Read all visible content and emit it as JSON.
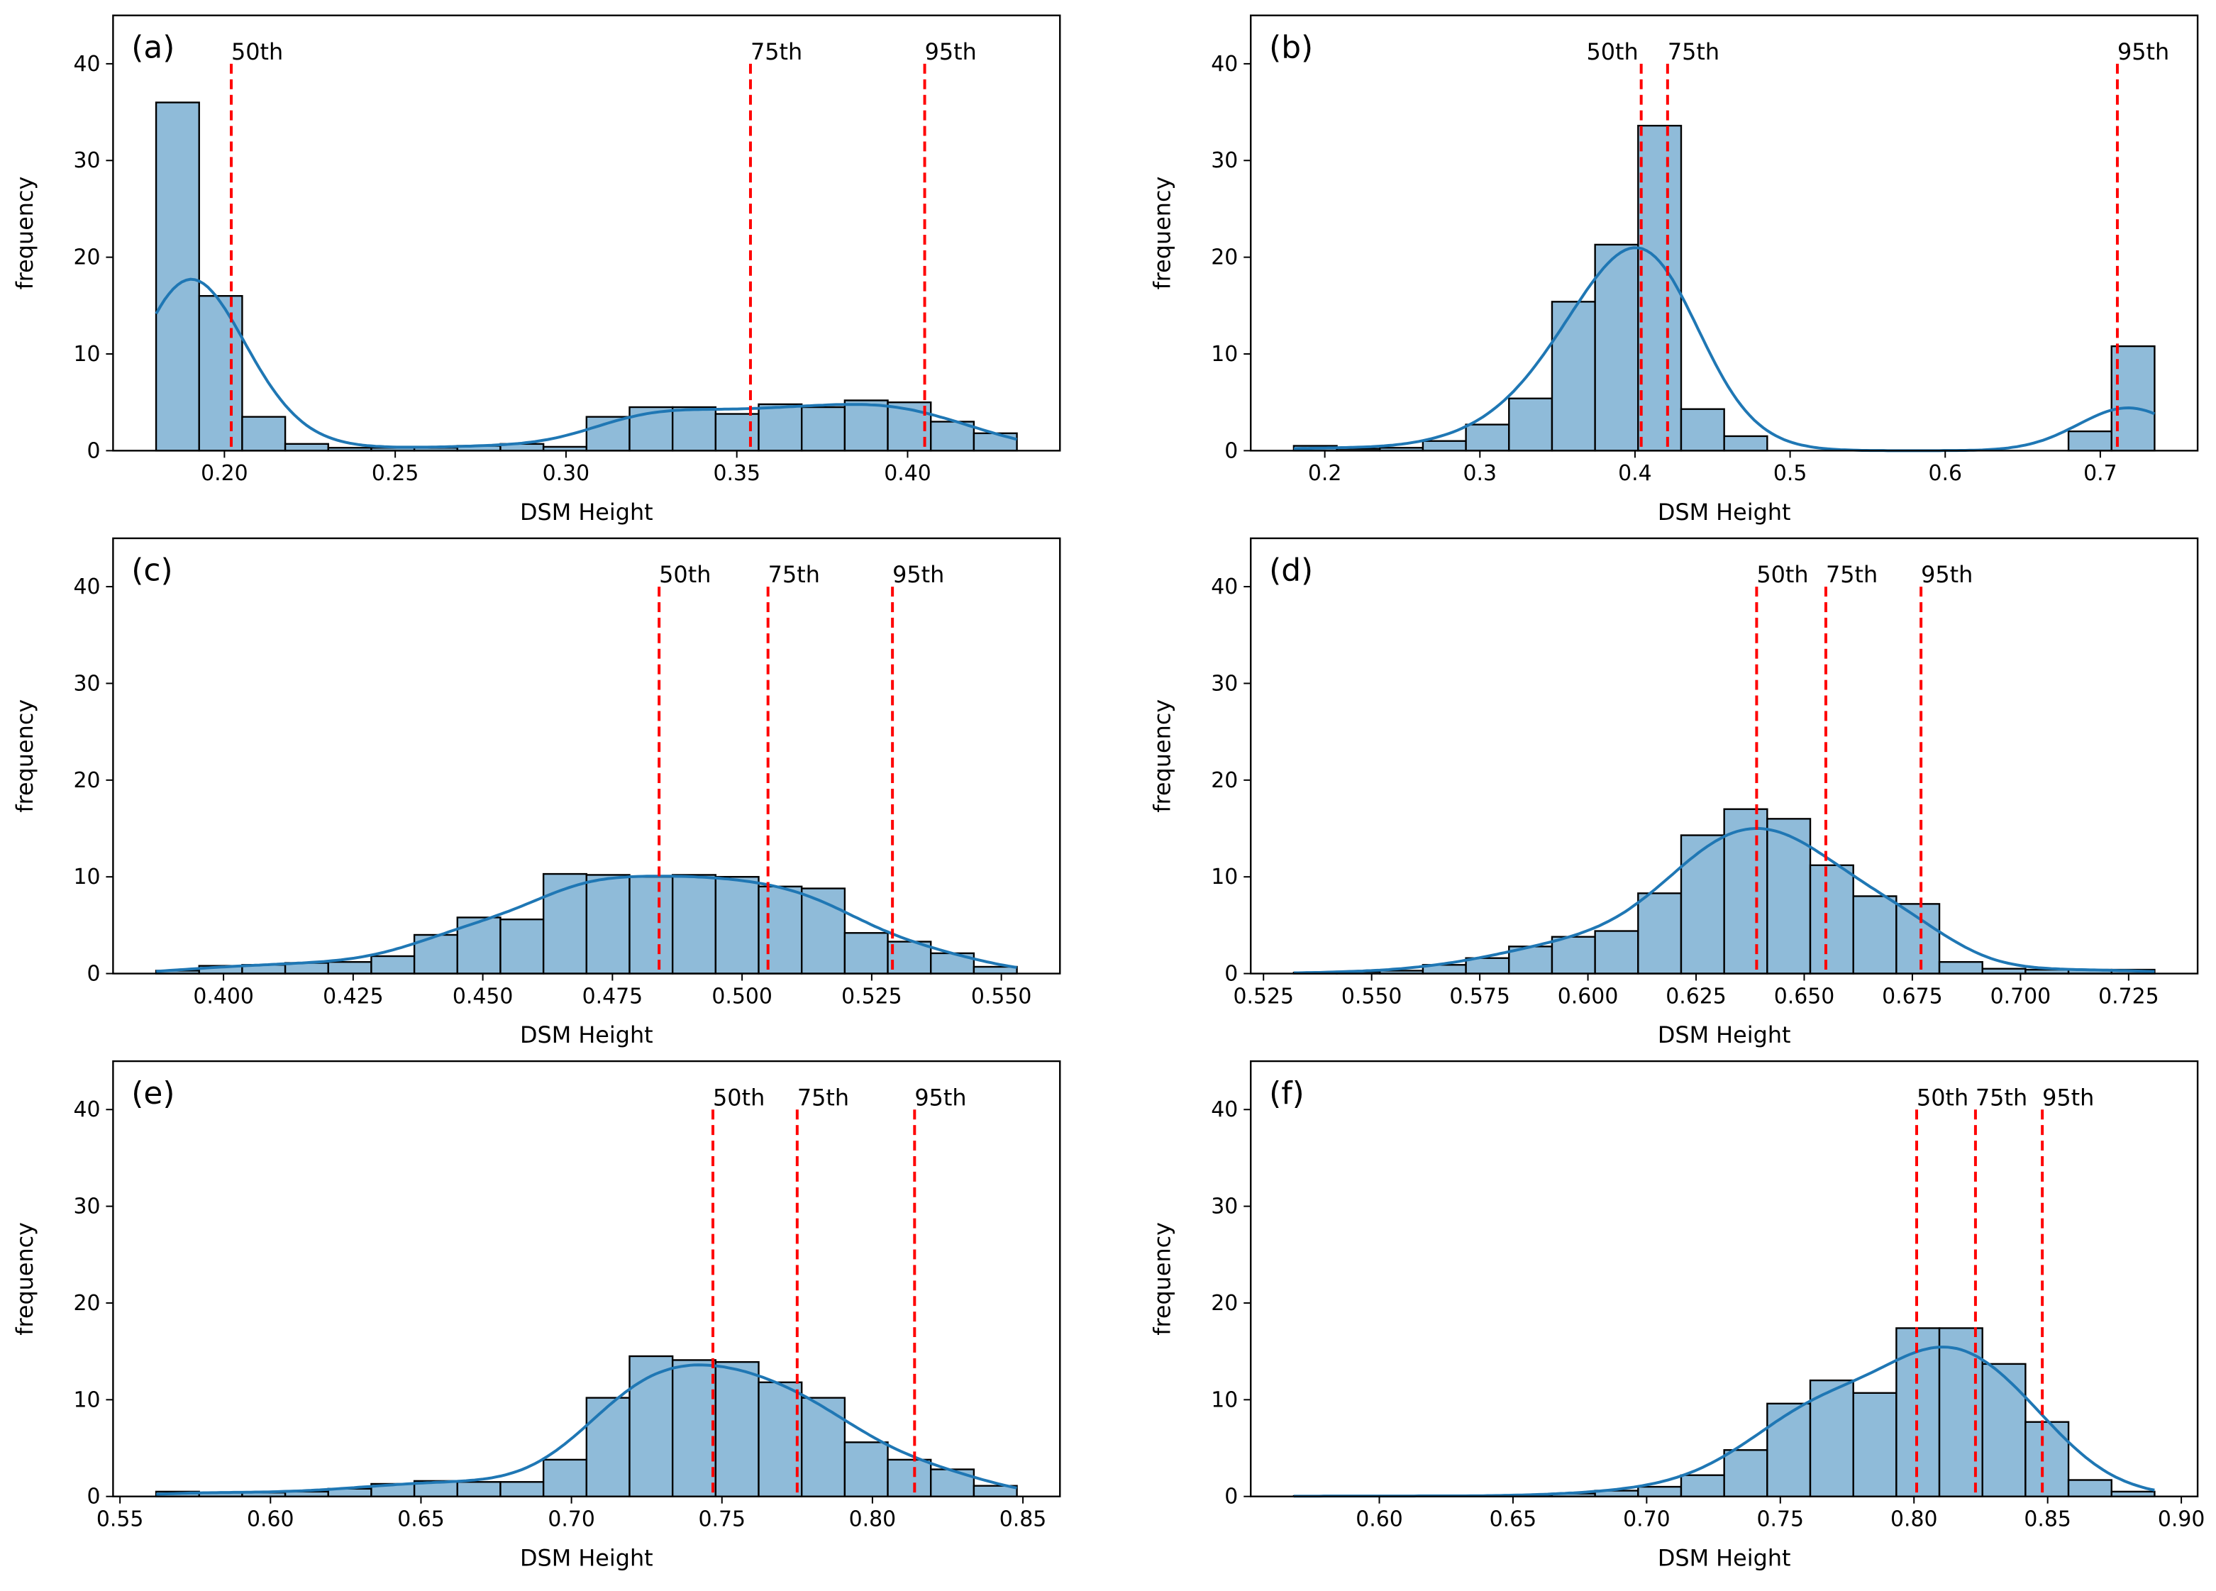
{
  "chart_data": [
    {
      "type": "bar",
      "title": "(a)",
      "xlabel": "DSM Height",
      "ylabel": "frequency",
      "bin_start": 0.18,
      "bin_end": 0.432,
      "values": [
        36,
        16,
        3.5,
        0.7,
        0.3,
        0.3,
        0.3,
        0.5,
        0.7,
        0.4,
        3.5,
        4.5,
        4.5,
        3.8,
        4.8,
        4.5,
        5.2,
        5.0,
        3.0,
        1.8
      ],
      "xticks": [
        "0.20",
        "0.25",
        "0.30",
        "0.35",
        "0.40"
      ],
      "yticks": [
        "0",
        "10",
        "20",
        "30",
        "40"
      ],
      "ylim": [
        0,
        45
      ],
      "percentiles": [
        {
          "label": "50th",
          "value": 0.202
        },
        {
          "label": "75th",
          "value": 0.354
        },
        {
          "label": "95th",
          "value": 0.405
        }
      ]
    },
    {
      "type": "bar",
      "title": "(b)",
      "xlabel": "DSM Height",
      "ylabel": "frequency",
      "bin_start": 0.18,
      "bin_end": 0.735,
      "values": [
        0.5,
        0.2,
        0.3,
        1.0,
        2.7,
        5.4,
        15.4,
        21.3,
        33.6,
        4.3,
        1.5,
        0,
        0,
        0,
        0,
        0,
        0,
        0,
        2.0,
        10.8
      ],
      "xticks": [
        "0.2",
        "0.3",
        "0.4",
        "0.5",
        "0.6",
        "0.7"
      ],
      "yticks": [
        "0",
        "10",
        "20",
        "30",
        "40"
      ],
      "ylim": [
        0,
        45
      ],
      "percentiles": [
        {
          "label": "50th",
          "value": 0.404
        },
        {
          "label": "75th",
          "value": 0.421
        },
        {
          "label": "95th",
          "value": 0.711
        }
      ]
    },
    {
      "type": "bar",
      "title": "(c)",
      "xlabel": "DSM Height",
      "ylabel": "frequency",
      "bin_start": 0.387,
      "bin_end": 0.553,
      "values": [
        0.3,
        0.8,
        0.9,
        1.1,
        1.2,
        1.8,
        4.0,
        5.8,
        5.6,
        10.3,
        10.2,
        10.0,
        10.2,
        10.0,
        9.0,
        8.8,
        4.2,
        3.3,
        2.1,
        0.7
      ],
      "xticks": [
        "0.400",
        "0.425",
        "0.450",
        "0.475",
        "0.500",
        "0.525",
        "0.550"
      ],
      "yticks": [
        "0",
        "10",
        "20",
        "30",
        "40"
      ],
      "ylim": [
        0,
        45
      ],
      "percentiles": [
        {
          "label": "50th",
          "value": 0.484
        },
        {
          "label": "75th",
          "value": 0.505
        },
        {
          "label": "95th",
          "value": 0.529
        }
      ]
    },
    {
      "type": "bar",
      "title": "(d)",
      "xlabel": "DSM Height",
      "ylabel": "frequency",
      "bin_start": 0.532,
      "bin_end": 0.731,
      "values": [
        0.1,
        0.2,
        0.3,
        0.9,
        1.6,
        2.8,
        3.8,
        4.4,
        8.3,
        14.3,
        17.0,
        16.0,
        11.2,
        8.0,
        7.2,
        1.2,
        0.5,
        0.4,
        0.4,
        0.4
      ],
      "xticks": [
        "0.525",
        "0.550",
        "0.575",
        "0.600",
        "0.625",
        "0.650",
        "0.675",
        "0.700",
        "0.725"
      ],
      "yticks": [
        "0",
        "10",
        "20",
        "30",
        "40"
      ],
      "ylim": [
        0,
        45
      ],
      "percentiles": [
        {
          "label": "50th",
          "value": 0.639
        },
        {
          "label": "75th",
          "value": 0.655
        },
        {
          "label": "95th",
          "value": 0.677
        }
      ]
    },
    {
      "type": "bar",
      "title": "(e)",
      "xlabel": "DSM Height",
      "ylabel": "frequency",
      "bin_start": 0.562,
      "bin_end": 0.848,
      "values": [
        0.5,
        0.4,
        0.4,
        0.5,
        0.8,
        1.3,
        1.6,
        1.5,
        1.5,
        3.8,
        10.2,
        14.5,
        14.1,
        13.9,
        11.8,
        10.2,
        5.6,
        3.8,
        2.8,
        1.1
      ],
      "xticks": [
        "0.55",
        "0.60",
        "0.65",
        "0.70",
        "0.75",
        "0.80",
        "0.85"
      ],
      "yticks": [
        "0",
        "10",
        "20",
        "30",
        "40"
      ],
      "ylim": [
        0,
        45
      ],
      "percentiles": [
        {
          "label": "50th",
          "value": 0.747
        },
        {
          "label": "75th",
          "value": 0.775
        },
        {
          "label": "95th",
          "value": 0.814
        }
      ]
    },
    {
      "type": "bar",
      "title": "(f)",
      "xlabel": "DSM Height",
      "ylabel": "frequency",
      "bin_start": 0.568,
      "bin_end": 0.89,
      "values": [
        0.05,
        0.05,
        0.05,
        0.05,
        0.05,
        0.1,
        0.3,
        0.6,
        1.0,
        2.2,
        4.8,
        9.6,
        12.0,
        10.7,
        17.4,
        17.4,
        13.7,
        7.7,
        1.7,
        0.5
      ],
      "xticks": [
        "0.60",
        "0.65",
        "0.70",
        "0.75",
        "0.80",
        "0.85",
        "0.90"
      ],
      "yticks": [
        "0",
        "10",
        "20",
        "30",
        "40"
      ],
      "ylim": [
        0,
        45
      ],
      "percentiles": [
        {
          "label": "50th",
          "value": 0.801
        },
        {
          "label": "75th",
          "value": 0.823
        },
        {
          "label": "95th",
          "value": 0.848
        }
      ]
    }
  ],
  "colors": {
    "bar": "#8fbbd9",
    "kde": "#1f77b4",
    "percentile": "#ff0000"
  }
}
